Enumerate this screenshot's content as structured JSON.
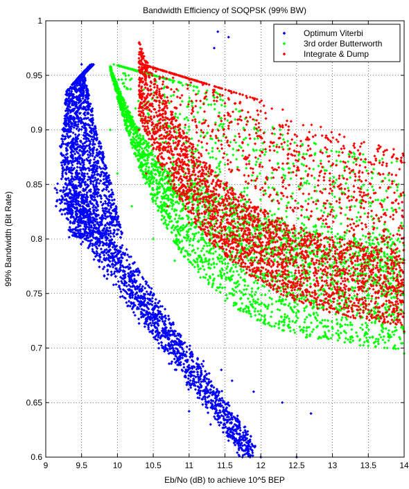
{
  "chart_data": {
    "type": "scatter",
    "title": "Bandwidth Efficiency of SOQPSK (99% BW)",
    "xlabel": "Eb/No (dB) to achieve 10^5 BEP",
    "ylabel": "99% Bandwidth (Bit Rate)",
    "xlim": [
      9,
      14
    ],
    "ylim": [
      0.6,
      1
    ],
    "x_ticks": [
      "9",
      "9.5",
      "10",
      "10.5",
      "11",
      "11.5",
      "12",
      "12.5",
      "13",
      "13.5",
      "14"
    ],
    "y_ticks": [
      "0.6",
      "0.65",
      "0.7",
      "0.75",
      "0.8",
      "0.85",
      "0.9",
      "0.95",
      "1"
    ],
    "grid": true,
    "legend_position": "top-right",
    "series": [
      {
        "name": "Optimum Viterbi",
        "color": "#0000ff",
        "marker": "diamond",
        "description_points": {
          "x": [
            9.5,
            9.4,
            9.28,
            9.2,
            9.22,
            9.35,
            9.6,
            9.9,
            10.1,
            10.3,
            10.6,
            10.9,
            11.2,
            11.5,
            11.8,
            12.0,
            11.2,
            11.45,
            11.6,
            11.9,
            12.3,
            12.7,
            11.0,
            11.3,
            11.6,
            11.9,
            12.5,
            11.4,
            11.35,
            11.55
          ],
          "y": [
            0.96,
            0.93,
            0.91,
            0.885,
            0.855,
            0.825,
            0.805,
            0.79,
            0.77,
            0.74,
            0.71,
            0.68,
            0.655,
            0.63,
            0.61,
            0.6,
            0.688,
            0.68,
            0.67,
            0.66,
            0.65,
            0.64,
            0.642,
            0.63,
            0.62,
            0.61,
            0.6,
            0.99,
            0.975,
            0.985
          ]
        }
      },
      {
        "name": "3rd order Butterworth",
        "color": "#00ff00",
        "marker": "diamond",
        "description_points": {
          "x": [
            9.95,
            9.9,
            10.0,
            10.2,
            10.5,
            10.8,
            11.2,
            11.6,
            12.0,
            12.5,
            13.0,
            13.5,
            14.0,
            11.0,
            12.0,
            13.0,
            14.0
          ],
          "y": [
            0.96,
            0.9,
            0.86,
            0.83,
            0.8,
            0.78,
            0.765,
            0.75,
            0.74,
            0.725,
            0.712,
            0.702,
            0.695,
            0.9,
            0.87,
            0.85,
            0.84
          ]
        }
      },
      {
        "name": "Integrate & Dump",
        "color": "#ff0000",
        "marker": "diamond",
        "description_points": {
          "x": [
            10.35,
            10.3,
            10.4,
            10.7,
            11.0,
            11.5,
            12.0,
            12.5,
            13.0,
            13.5,
            14.0,
            11.5,
            12.5,
            13.5,
            14.0
          ],
          "y": [
            0.96,
            0.9,
            0.86,
            0.83,
            0.815,
            0.795,
            0.78,
            0.765,
            0.75,
            0.735,
            0.715,
            0.91,
            0.88,
            0.86,
            0.87
          ]
        }
      }
    ]
  }
}
